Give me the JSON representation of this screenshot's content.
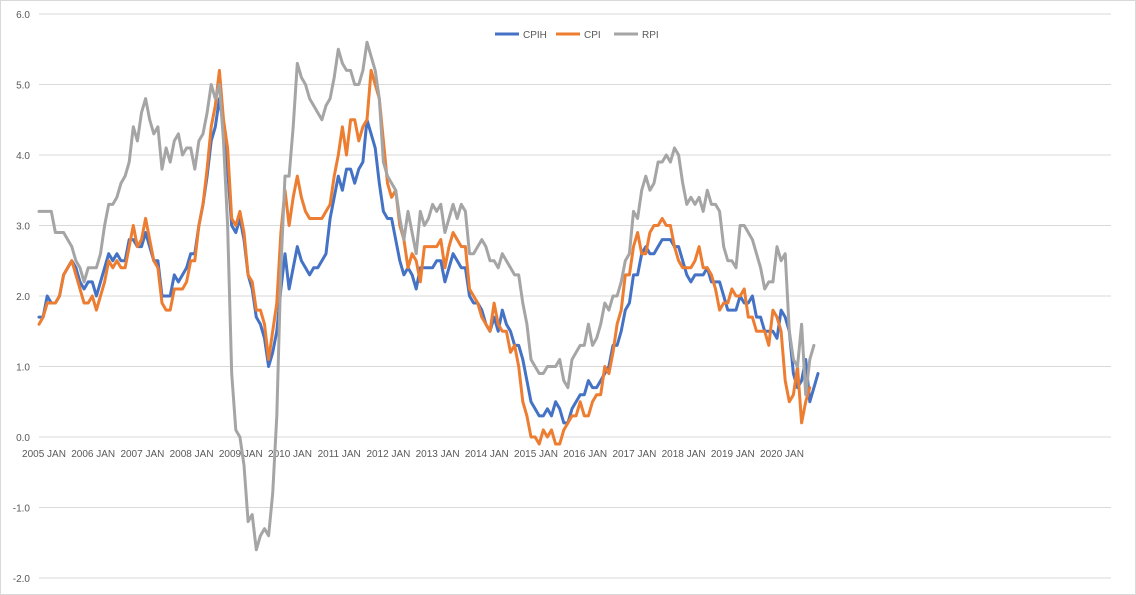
{
  "chart_data": {
    "type": "line",
    "title": "",
    "xlabel": "",
    "ylabel": "",
    "ylim": [
      -2.0,
      6.0
    ],
    "yticks": [
      "6.0",
      "5.0",
      "4.0",
      "3.0",
      "2.0",
      "1.0",
      "0.0",
      "-1.0",
      "-2.0"
    ],
    "grid": true,
    "legend_position": "top-center",
    "x_start": "2005 JAN",
    "x_tick_labels": [
      "2005 JAN",
      "2006 JAN",
      "2007 JAN",
      "2008 JAN",
      "2009 JAN",
      "2010 JAN",
      "2011 JAN",
      "2012 JAN",
      "2013 JAN",
      "2014 JAN",
      "2015 JAN",
      "2016 JAN",
      "2017 JAN",
      "2018 JAN",
      "2019 JAN",
      "2020 JAN"
    ],
    "series": [
      {
        "name": "CPIH",
        "color": "#4472c4",
        "values": [
          1.7,
          1.7,
          2.0,
          1.9,
          1.9,
          2.0,
          2.3,
          2.4,
          2.5,
          2.4,
          2.2,
          2.1,
          2.2,
          2.2,
          2.0,
          2.2,
          2.4,
          2.6,
          2.5,
          2.6,
          2.5,
          2.5,
          2.8,
          2.8,
          2.7,
          2.7,
          2.9,
          2.7,
          2.5,
          2.5,
          2.0,
          2.0,
          2.0,
          2.3,
          2.2,
          2.3,
          2.4,
          2.6,
          2.6,
          3.0,
          3.3,
          3.7,
          4.2,
          4.4,
          4.8,
          4.4,
          3.8,
          3.0,
          2.9,
          3.1,
          2.8,
          2.3,
          2.1,
          1.7,
          1.6,
          1.4,
          1.0,
          1.2,
          1.5,
          2.1,
          2.6,
          2.1,
          2.4,
          2.7,
          2.5,
          2.4,
          2.3,
          2.4,
          2.4,
          2.5,
          2.6,
          3.1,
          3.4,
          3.7,
          3.5,
          3.8,
          3.8,
          3.6,
          3.8,
          3.9,
          4.5,
          4.3,
          4.1,
          3.6,
          3.2,
          3.1,
          3.1,
          2.8,
          2.5,
          2.3,
          2.4,
          2.3,
          2.1,
          2.4,
          2.4,
          2.4,
          2.4,
          2.5,
          2.5,
          2.2,
          2.4,
          2.6,
          2.5,
          2.4,
          2.4,
          2.0,
          1.9,
          1.9,
          1.8,
          1.6,
          1.5,
          1.7,
          1.5,
          1.8,
          1.6,
          1.5,
          1.3,
          1.3,
          1.1,
          0.8,
          0.5,
          0.4,
          0.3,
          0.3,
          0.4,
          0.3,
          0.5,
          0.4,
          0.2,
          0.2,
          0.4,
          0.5,
          0.6,
          0.6,
          0.8,
          0.7,
          0.7,
          0.8,
          0.9,
          1.0,
          1.3,
          1.3,
          1.5,
          1.8,
          1.9,
          2.3,
          2.3,
          2.6,
          2.7,
          2.6,
          2.6,
          2.7,
          2.8,
          2.8,
          2.8,
          2.7,
          2.7,
          2.5,
          2.3,
          2.2,
          2.3,
          2.3,
          2.3,
          2.4,
          2.2,
          2.2,
          2.2,
          2.0,
          1.8,
          1.8,
          1.8,
          2.0,
          1.9,
          1.9,
          2.0,
          1.7,
          1.7,
          1.5,
          1.5,
          1.5,
          1.4,
          1.8,
          1.7,
          1.5,
          0.9,
          0.7,
          0.8,
          1.1,
          0.5,
          0.7,
          0.9
        ]
      },
      {
        "name": "CPI",
        "color": "#ed7d31",
        "values": [
          1.6,
          1.7,
          1.9,
          1.9,
          1.9,
          2.0,
          2.3,
          2.4,
          2.5,
          2.3,
          2.1,
          1.9,
          1.9,
          2.0,
          1.8,
          2.0,
          2.2,
          2.5,
          2.4,
          2.5,
          2.4,
          2.4,
          2.7,
          3.0,
          2.7,
          2.8,
          3.1,
          2.8,
          2.5,
          2.4,
          1.9,
          1.8,
          1.8,
          2.1,
          2.1,
          2.1,
          2.2,
          2.5,
          2.5,
          3.0,
          3.3,
          3.8,
          4.4,
          4.7,
          5.2,
          4.5,
          4.1,
          3.1,
          3.0,
          3.2,
          2.9,
          2.3,
          2.2,
          1.8,
          1.8,
          1.6,
          1.1,
          1.5,
          1.9,
          2.9,
          3.5,
          3.0,
          3.4,
          3.7,
          3.4,
          3.2,
          3.1,
          3.1,
          3.1,
          3.1,
          3.2,
          3.3,
          3.7,
          4.0,
          4.4,
          4.0,
          4.5,
          4.5,
          4.2,
          4.4,
          4.5,
          5.2,
          5.0,
          4.8,
          4.2,
          3.6,
          3.4,
          3.5,
          3.0,
          2.8,
          2.4,
          2.6,
          2.5,
          2.2,
          2.7,
          2.7,
          2.7,
          2.7,
          2.8,
          2.4,
          2.7,
          2.9,
          2.8,
          2.7,
          2.7,
          2.1,
          2.0,
          1.9,
          1.7,
          1.6,
          1.5,
          1.9,
          1.6,
          1.5,
          1.5,
          1.2,
          1.3,
          1.0,
          0.5,
          0.3,
          0.0,
          0.0,
          -0.1,
          0.1,
          0.0,
          0.1,
          -0.1,
          -0.1,
          0.1,
          0.2,
          0.3,
          0.3,
          0.5,
          0.3,
          0.3,
          0.5,
          0.6,
          0.6,
          1.0,
          0.9,
          1.2,
          1.6,
          1.8,
          2.3,
          2.3,
          2.7,
          2.9,
          2.6,
          2.6,
          2.9,
          3.0,
          3.0,
          3.1,
          3.0,
          3.0,
          2.7,
          2.5,
          2.4,
          2.4,
          2.4,
          2.5,
          2.7,
          2.4,
          2.4,
          2.3,
          2.1,
          1.8,
          1.9,
          1.9,
          2.1,
          2.0,
          2.0,
          2.1,
          1.7,
          1.7,
          1.5,
          1.5,
          1.5,
          1.3,
          1.8,
          1.7,
          1.5,
          0.8,
          0.5,
          0.6,
          1.0,
          0.2,
          0.5,
          0.7
        ]
      },
      {
        "name": "RPI",
        "color": "#a5a5a5",
        "values": [
          3.2,
          3.2,
          3.2,
          3.2,
          2.9,
          2.9,
          2.9,
          2.8,
          2.7,
          2.5,
          2.4,
          2.2,
          2.4,
          2.4,
          2.4,
          2.6,
          3.0,
          3.3,
          3.3,
          3.4,
          3.6,
          3.7,
          3.9,
          4.4,
          4.2,
          4.6,
          4.8,
          4.5,
          4.3,
          4.4,
          3.8,
          4.1,
          3.9,
          4.2,
          4.3,
          4.0,
          4.1,
          4.1,
          3.8,
          4.2,
          4.3,
          4.6,
          5.0,
          4.8,
          5.0,
          4.2,
          3.0,
          0.9,
          0.1,
          0.0,
          -0.4,
          -1.2,
          -1.1,
          -1.6,
          -1.4,
          -1.3,
          -1.4,
          -0.8,
          0.3,
          2.4,
          3.7,
          3.7,
          4.4,
          5.3,
          5.1,
          5.0,
          4.8,
          4.7,
          4.6,
          4.5,
          4.7,
          4.8,
          5.1,
          5.5,
          5.3,
          5.2,
          5.2,
          5.0,
          5.0,
          5.2,
          5.6,
          5.4,
          5.2,
          4.8,
          3.9,
          3.7,
          3.6,
          3.5,
          3.1,
          2.8,
          3.2,
          2.9,
          2.6,
          3.2,
          3.0,
          3.1,
          3.3,
          3.2,
          3.3,
          2.9,
          3.1,
          3.3,
          3.1,
          3.3,
          3.2,
          2.6,
          2.6,
          2.7,
          2.8,
          2.7,
          2.5,
          2.5,
          2.4,
          2.6,
          2.5,
          2.4,
          2.3,
          2.3,
          1.9,
          1.6,
          1.1,
          1.0,
          0.9,
          0.9,
          1.0,
          1.0,
          1.0,
          1.1,
          0.8,
          0.7,
          1.1,
          1.2,
          1.3,
          1.3,
          1.6,
          1.3,
          1.4,
          1.6,
          1.9,
          1.8,
          2.0,
          2.0,
          2.2,
          2.5,
          2.6,
          3.2,
          3.1,
          3.5,
          3.7,
          3.5,
          3.6,
          3.9,
          3.9,
          4.0,
          3.9,
          4.1,
          4.0,
          3.6,
          3.3,
          3.4,
          3.3,
          3.4,
          3.2,
          3.5,
          3.3,
          3.3,
          3.2,
          2.7,
          2.5,
          2.5,
          2.4,
          3.0,
          3.0,
          2.9,
          2.8,
          2.6,
          2.4,
          2.1,
          2.2,
          2.2,
          2.7,
          2.5,
          2.6,
          1.5,
          1.1,
          1.0,
          1.6,
          0.6,
          1.1,
          1.3
        ]
      }
    ]
  }
}
